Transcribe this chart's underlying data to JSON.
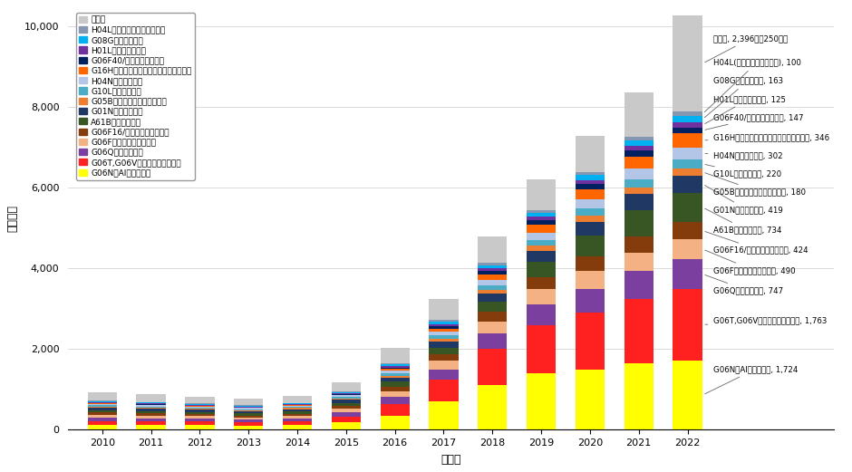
{
  "years": [
    2010,
    2011,
    2012,
    2013,
    2014,
    2015,
    2016,
    2017,
    2018,
    2019,
    2020,
    2021,
    2022
  ],
  "categories": [
    "G06N（AIコア技術）",
    "G06T,G06V（画像処理・認識）",
    "G06Q（ビジネス）",
    "G06Fその他（情報一般）",
    "G06F16/（情報検索・推袖）",
    "A61B（医学診断）",
    "G01N（材料分析）",
    "G05B（制御糴・調整糴一般）",
    "G10L（音声処理）",
    "H04N（映像処理）",
    "G16H（ヘルスケアインフォマティクス）",
    "G06F40/（自然言語処理）",
    "H01L（半導体装置）",
    "G08G（交通制御）",
    "H04L（デジタル情報の伝送）",
    "その他"
  ],
  "colors": [
    "#FFFF00",
    "#FF2020",
    "#7B3FA0",
    "#F4B183",
    "#843C0C",
    "#375623",
    "#1F3864",
    "#ED7D31",
    "#4BACC6",
    "#B4C6E7",
    "#FF6600",
    "#002060",
    "#7030A0",
    "#00B0F0",
    "#8496B0",
    "#C9C9C9"
  ],
  "data": {
    "G06N（AIコア技術）": [
      120,
      115,
      110,
      100,
      115,
      180,
      350,
      700,
      1100,
      1400,
      1500,
      1650,
      1724
    ],
    "G06T,G06V（画像処理・認識）": [
      100,
      95,
      90,
      80,
      95,
      150,
      280,
      550,
      900,
      1200,
      1400,
      1600,
      1763
    ],
    "G06Q（ビジネス）": [
      80,
      75,
      70,
      65,
      70,
      100,
      180,
      250,
      380,
      500,
      600,
      680,
      747
    ],
    "G06Fその他（情報一般）": [
      70,
      68,
      65,
      60,
      65,
      90,
      150,
      210,
      310,
      380,
      430,
      470,
      490
    ],
    "G06F16/（情報検索・推袖）": [
      55,
      52,
      50,
      48,
      52,
      70,
      110,
      160,
      230,
      300,
      360,
      400,
      424
    ],
    "A61B（医学診断）": [
      65,
      62,
      58,
      55,
      60,
      80,
      120,
      170,
      250,
      380,
      520,
      650,
      734
    ],
    "G01N（材料分析）": [
      60,
      58,
      55,
      52,
      55,
      70,
      100,
      140,
      200,
      270,
      340,
      390,
      419
    ],
    "G05B（制御糴・調整糴一般）": [
      30,
      28,
      26,
      24,
      26,
      35,
      55,
      75,
      100,
      130,
      155,
      168,
      180
    ],
    "G10L（音声処理）": [
      30,
      28,
      26,
      25,
      27,
      35,
      55,
      80,
      110,
      150,
      175,
      200,
      220
    ],
    "H04N（映像処理）": [
      35,
      33,
      31,
      29,
      31,
      42,
      65,
      90,
      130,
      180,
      230,
      270,
      302
    ],
    "G16H（ヘルスケアインフォマティクス）": [
      10,
      10,
      10,
      10,
      12,
      20,
      40,
      80,
      130,
      190,
      250,
      300,
      346
    ],
    "G06F40/（自然言語処理）": [
      10,
      10,
      10,
      10,
      11,
      18,
      35,
      65,
      90,
      110,
      125,
      138,
      147
    ],
    "H01L（半導体装置）": [
      20,
      19,
      18,
      17,
      18,
      25,
      38,
      55,
      75,
      90,
      105,
      115,
      125
    ],
    "G08G（交通制御）": [
      20,
      19,
      18,
      17,
      18,
      25,
      40,
      60,
      80,
      100,
      125,
      145,
      163
    ],
    "H04L（デジタル情報の伝送）": [
      15,
      14,
      13,
      12,
      13,
      18,
      28,
      40,
      55,
      65,
      80,
      90,
      100
    ],
    "その他": [
      200,
      190,
      175,
      160,
      175,
      230,
      380,
      520,
      650,
      760,
      900,
      1100,
      2396
    ]
  },
  "ylim": [
    0,
    10000
  ],
  "yticks": [
    0,
    2000,
    4000,
    6000,
    8000,
    10000
  ],
  "xlabel": "出願年",
  "ylabel": "出願件数",
  "ann_labels": {
    "その他": "その他, 2,396，（250種）",
    "H04L（デジタル情報の伝送）": "H04L(デジタル情報の伝送), 100",
    "G08G（交通制御）": "G08G（交通制御）, 163",
    "H01L（半導体装置）": "H01L（半導体装置）, 125",
    "G06F40/（自然言語処理）": "G06F40/（自然言語処理）, 147",
    "G16H（ヘルスケアインフォマティクス）": "G16H（ヘルスケアインフォマティクス）, 346",
    "H04N（映像処理）": "H04N（映像処理）, 302",
    "G10L（音声処理）": "G10L（音声処理）, 220",
    "G05B（制御糴・調整糴一般）": "G05B（制御糴・調整糴一般）, 180",
    "G01N（材料分析）": "G01N（材料分析）, 419",
    "A61B（医学診断）": "A61B（医学診断）, 734",
    "G06F16/（情報検索・推袖）": "G06F16/（情報検索・推袖）, 424",
    "G06Fその他（情報一般）": "G06Fその他（情報一般）, 490",
    "G06Q（ビジネス）": "G06Q（ビジネス）, 747",
    "G06T,G06V（画像処理・認識）": "G06T,G06V（画像処理・認識）, 1,763",
    "G06N（AIコア技術）": "G06N（AIコア技術）, 1,724"
  },
  "ann_y_pos": {
    "その他": 9700,
    "H04L（デジタル情報の伝送）": 9100,
    "G08G（交通制御）": 8650,
    "H01L（半導体装置）": 8200,
    "G06F40/（自然言語処理）": 7750,
    "G16H（ヘルスケアインフォマティクス）": 7250,
    "H04N（映像処理）": 6800,
    "G10L（音声処理）": 6350,
    "G05B（制御糴・調整糴一般）": 5900,
    "G01N（材料分析）": 5450,
    "A61B（医学診断）": 4950,
    "G06F16/（情報検索・推袖）": 4450,
    "G06Fその他（情報一般）": 3950,
    "G06Q（ビジネス）": 3450,
    "G06T,G06V（画像処理・認識）": 2700,
    "G06N（AIコア技術）": 1500
  },
  "legend_order": [
    "その他",
    "H04L（デジタル情報の伝送）",
    "G08G（交通制御）",
    "H01L（半導体装置）",
    "G06F40/（自然言語処理）",
    "G16H（ヘルスケアインフォマティクス）",
    "H04N（映像処理）",
    "G10L（音声処理）",
    "G05B（制御糴・調整糴一般）",
    "G01N（材料分析）",
    "A61B（医学診断）",
    "G06F16/（情報検索・推袖）",
    "G06Fその他（情報一般）",
    "G06Q（ビジネス）",
    "G06T,G06V（画像処理・認識）",
    "G06N（AIコア技術）"
  ]
}
